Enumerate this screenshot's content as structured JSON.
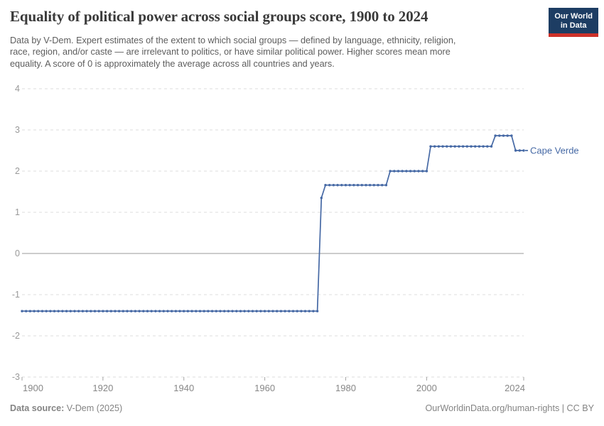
{
  "header": {
    "title": "Equality of political power across social groups score, 1900 to 2024",
    "subtitle_lines": [
      "Data by V-Dem. Expert estimates of the extent to which social groups — defined by language, ethnicity, religion,",
      "race, region, and/or caste — are irrelevant to politics, or have similar political power. Higher scores mean more",
      "equality. A score of 0 is approximately the average across all countries and years."
    ]
  },
  "logo": {
    "line1": "Our World",
    "line2": "in Data",
    "bg_color": "#1d3d63",
    "accent_color": "#cd322a"
  },
  "footer": {
    "source_label": "Data source:",
    "source_value": " V-Dem (2025)",
    "right_text": "OurWorldinData.org/human-rights | CC BY"
  },
  "chart_data": {
    "type": "line",
    "title": "Equality of political power across social groups score, 1900 to 2024",
    "entity": "Cape Verde",
    "entity_label": "Cape Verde",
    "xlim": [
      1900,
      2024
    ],
    "ylim": [
      -3,
      4
    ],
    "x_ticks": [
      1900,
      1920,
      1940,
      1960,
      1980,
      2000,
      2024
    ],
    "y_ticks": [
      4,
      3,
      2,
      1,
      0,
      -1,
      -2,
      -3
    ],
    "grid": "dashed-horizontal",
    "zero_line": true,
    "legend_position": "end-of-line-label",
    "series": [
      {
        "name": "Cape Verde",
        "color": "#4669a5",
        "marker": "dot-every-year",
        "step_segments": [
          {
            "from": 1900,
            "to": 1973,
            "value": -1.4
          },
          {
            "from": 1974,
            "to": 1974,
            "value": 1.35
          },
          {
            "from": 1975,
            "to": 1990,
            "value": 1.66
          },
          {
            "from": 1991,
            "to": 2000,
            "value": 2.0
          },
          {
            "from": 2001,
            "to": 2016,
            "value": 2.6
          },
          {
            "from": 2017,
            "to": 2021,
            "value": 2.86
          },
          {
            "from": 2022,
            "to": 2024,
            "value": 2.5
          }
        ]
      }
    ]
  }
}
